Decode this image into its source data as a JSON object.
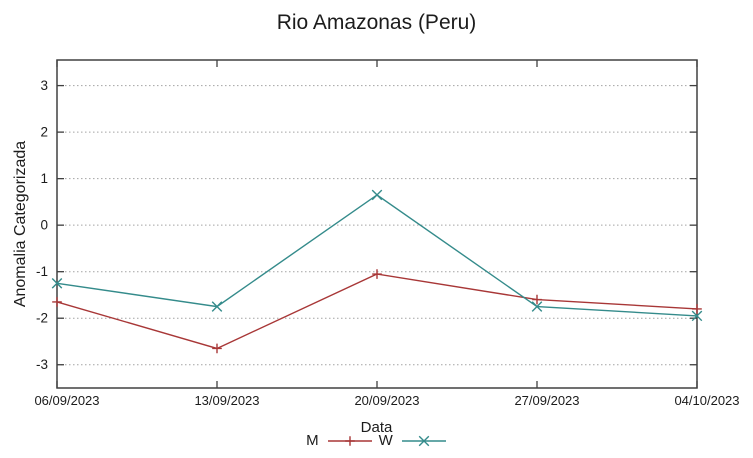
{
  "chart_data": {
    "type": "line",
    "title": "Rio Amazonas (Peru)",
    "xlabel": "Data",
    "ylabel": "Anomalia Categorizada",
    "categories": [
      "06/09/2023",
      "13/09/2023",
      "20/09/2023",
      "27/09/2023",
      "04/10/2023"
    ],
    "series": [
      {
        "name": "M",
        "color": "#a83737",
        "marker": "plus",
        "values": [
          -1.65,
          -2.65,
          -1.05,
          -1.6,
          -1.8
        ]
      },
      {
        "name": "W",
        "color": "#348b8b",
        "marker": "cross",
        "values": [
          -1.25,
          -1.75,
          0.65,
          -1.75,
          -1.95
        ]
      }
    ],
    "yticks": [
      -3,
      -2,
      -1,
      0,
      1,
      2,
      3
    ],
    "ylim": [
      -3.5,
      3.55
    ],
    "grid": "horizontal-dotted",
    "legend_position": "bottom-center",
    "frame_color": "#404040",
    "grid_color": "#a3a3a3",
    "text_color": "#1c1c1c"
  }
}
